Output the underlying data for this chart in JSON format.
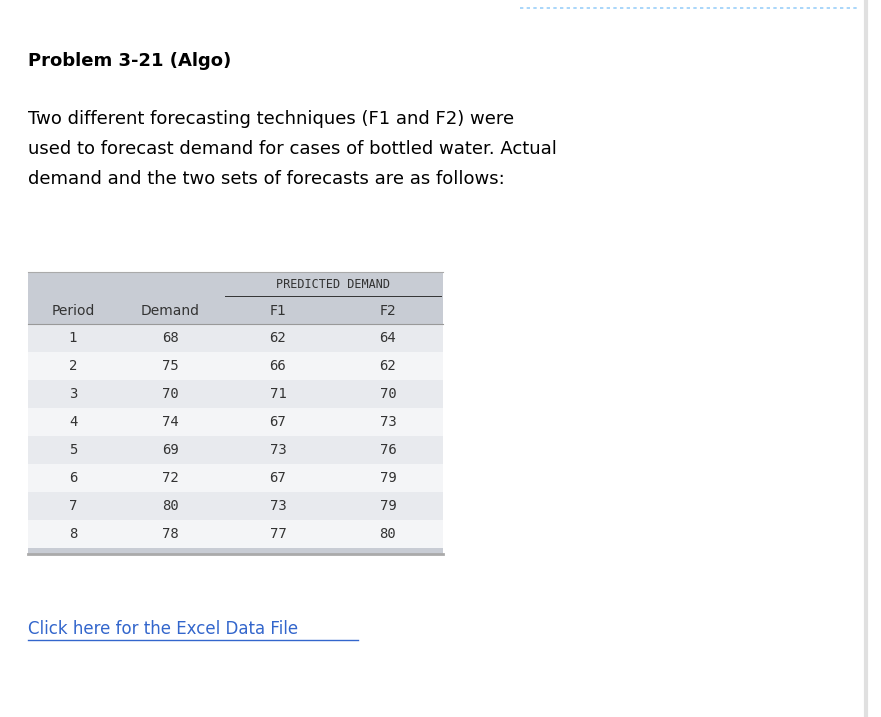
{
  "title": "Problem 3-21 (Algo)",
  "description_lines": [
    "Two different forecasting techniques (F1 and F2) were",
    "used to forecast demand for cases of bottled water. Actual",
    "demand and the two sets of forecasts are as follows:"
  ],
  "col_headers_span": "PREDICTED DEMAND",
  "col_headers": [
    "Period",
    "Demand",
    "F1",
    "F2"
  ],
  "table_data": [
    [
      1,
      68,
      62,
      64
    ],
    [
      2,
      75,
      66,
      62
    ],
    [
      3,
      70,
      71,
      70
    ],
    [
      4,
      74,
      67,
      73
    ],
    [
      5,
      69,
      73,
      76
    ],
    [
      6,
      72,
      67,
      79
    ],
    [
      7,
      80,
      73,
      79
    ],
    [
      8,
      78,
      77,
      80
    ]
  ],
  "link_text": "Click here for the Excel Data File",
  "background_color": "#ffffff",
  "table_header_bg": "#c8ccd4",
  "table_row_odd": "#e8eaee",
  "table_row_even": "#f4f5f7",
  "table_text_color": "#333333",
  "title_color": "#000000",
  "desc_color": "#000000",
  "link_color": "#3366cc",
  "dotted_line_color": "#90caf9",
  "right_border_color": "#cccccc",
  "title_fontsize": 13,
  "desc_fontsize": 13,
  "table_fontsize": 10,
  "span_fontsize": 8.5,
  "link_fontsize": 12
}
